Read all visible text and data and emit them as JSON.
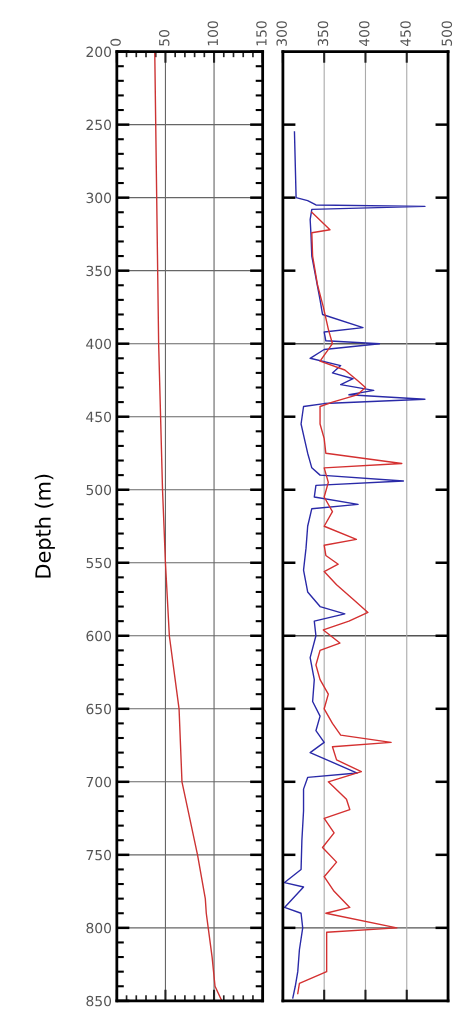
{
  "chart_data": [
    {
      "type": "line",
      "ylabel": "Depth (m)",
      "xlim": [
        0,
        150
      ],
      "xticks": [
        0,
        50,
        100,
        150
      ],
      "ylim": [
        850,
        200
      ],
      "yticks": [
        200,
        250,
        300,
        350,
        400,
        450,
        500,
        550,
        600,
        650,
        700,
        750,
        800,
        850
      ],
      "grid": true,
      "series": [
        {
          "color": "#cc3333",
          "x": [
            39,
            40,
            41,
            42,
            43,
            45,
            47,
            50,
            54,
            64,
            67,
            83,
            91,
            92,
            94,
            98,
            101,
            108
          ],
          "values": [
            200,
            250,
            300,
            350,
            400,
            450,
            500,
            550,
            600,
            650,
            700,
            750,
            780,
            790,
            800,
            820,
            840,
            850
          ]
        }
      ]
    },
    {
      "type": "line",
      "tick_labels": "x",
      "xlim": [
        300,
        500
      ],
      "xticks": [
        300,
        350,
        400,
        450,
        500
      ],
      "ylim": [
        850,
        200
      ],
      "yticks": [
        {
          "value": 250,
          "label": null
        },
        {
          "value": 300,
          "label": null
        },
        {
          "value": 350,
          "label": null
        },
        {
          "value": 400,
          "label": null
        },
        {
          "value": 450,
          "label": null
        },
        {
          "value": 500,
          "label": null
        },
        {
          "value": 550,
          "label": null
        },
        {
          "value": 600,
          "label": null
        },
        {
          "value": 650,
          "label": null
        },
        {
          "value": 700,
          "label": null
        },
        {
          "value": 750,
          "label": null
        },
        {
          "value": 800,
          "label": null
        }
      ],
      "grid": "x",
      "ref_lines": [
        {
          "axis": "y",
          "value": 400,
          "color": "#555555"
        },
        {
          "axis": "y",
          "value": 600,
          "color": "#555555"
        },
        {
          "axis": "y",
          "value": 800,
          "color": "#555555"
        }
      ],
      "series": [
        {
          "color": "#2a2aa8",
          "x": [
            314,
            316,
            330,
            340,
            472,
            335,
            333,
            334,
            335,
            340,
            345,
            348,
            397,
            350,
            352,
            417,
            350,
            333,
            370,
            360,
            385,
            370,
            410,
            380,
            472,
            350,
            325,
            322,
            326,
            330,
            335,
            345,
            446,
            340,
            338,
            391,
            335,
            330,
            328,
            325,
            330,
            345,
            375,
            338,
            340,
            333,
            338,
            336,
            345,
            340,
            350,
            333,
            390,
            330,
            325,
            325,
            323,
            322,
            302,
            325,
            302,
            322,
            324,
            320,
            318,
            315,
            312
          ],
          "values": [
            255,
            300,
            302,
            305,
            306,
            308,
            315,
            325,
            340,
            355,
            370,
            380,
            389,
            392,
            398,
            400,
            404,
            410,
            415,
            420,
            424,
            428,
            432,
            435,
            438,
            441,
            443,
            455,
            465,
            475,
            485,
            490,
            494,
            497,
            505,
            510,
            513,
            525,
            540,
            555,
            570,
            580,
            585,
            590,
            600,
            615,
            630,
            645,
            655,
            665,
            673,
            680,
            694,
            697,
            705,
            720,
            740,
            760,
            769,
            772,
            786,
            790,
            800,
            815,
            830,
            840,
            848
          ]
        },
        {
          "color": "#d43030",
          "x": [
            335,
            357,
            335,
            336,
            342,
            349,
            355,
            360,
            345,
            375,
            390,
            400,
            390,
            360,
            345,
            345,
            350,
            352,
            444,
            350,
            355,
            350,
            360,
            350,
            389,
            350,
            352,
            367,
            350,
            365,
            385,
            403,
            380,
            349,
            369,
            345,
            340,
            345,
            355,
            350,
            360,
            370,
            431,
            360,
            365,
            395,
            355,
            377,
            381,
            350,
            362,
            348,
            365,
            350,
            362,
            381,
            352,
            438,
            353,
            353,
            353,
            320,
            318
          ],
          "values": [
            310,
            322,
            324,
            340,
            360,
            375,
            390,
            400,
            412,
            418,
            425,
            430,
            435,
            440,
            443,
            455,
            465,
            475,
            482,
            485,
            495,
            505,
            515,
            525,
            534,
            538,
            545,
            551,
            556,
            565,
            575,
            584,
            590,
            596,
            605,
            610,
            620,
            630,
            640,
            650,
            660,
            668,
            673,
            676,
            685,
            693,
            700,
            712,
            719,
            725,
            735,
            745,
            755,
            765,
            775,
            786,
            790,
            800,
            803,
            815,
            830,
            838,
            845
          ]
        }
      ]
    }
  ]
}
